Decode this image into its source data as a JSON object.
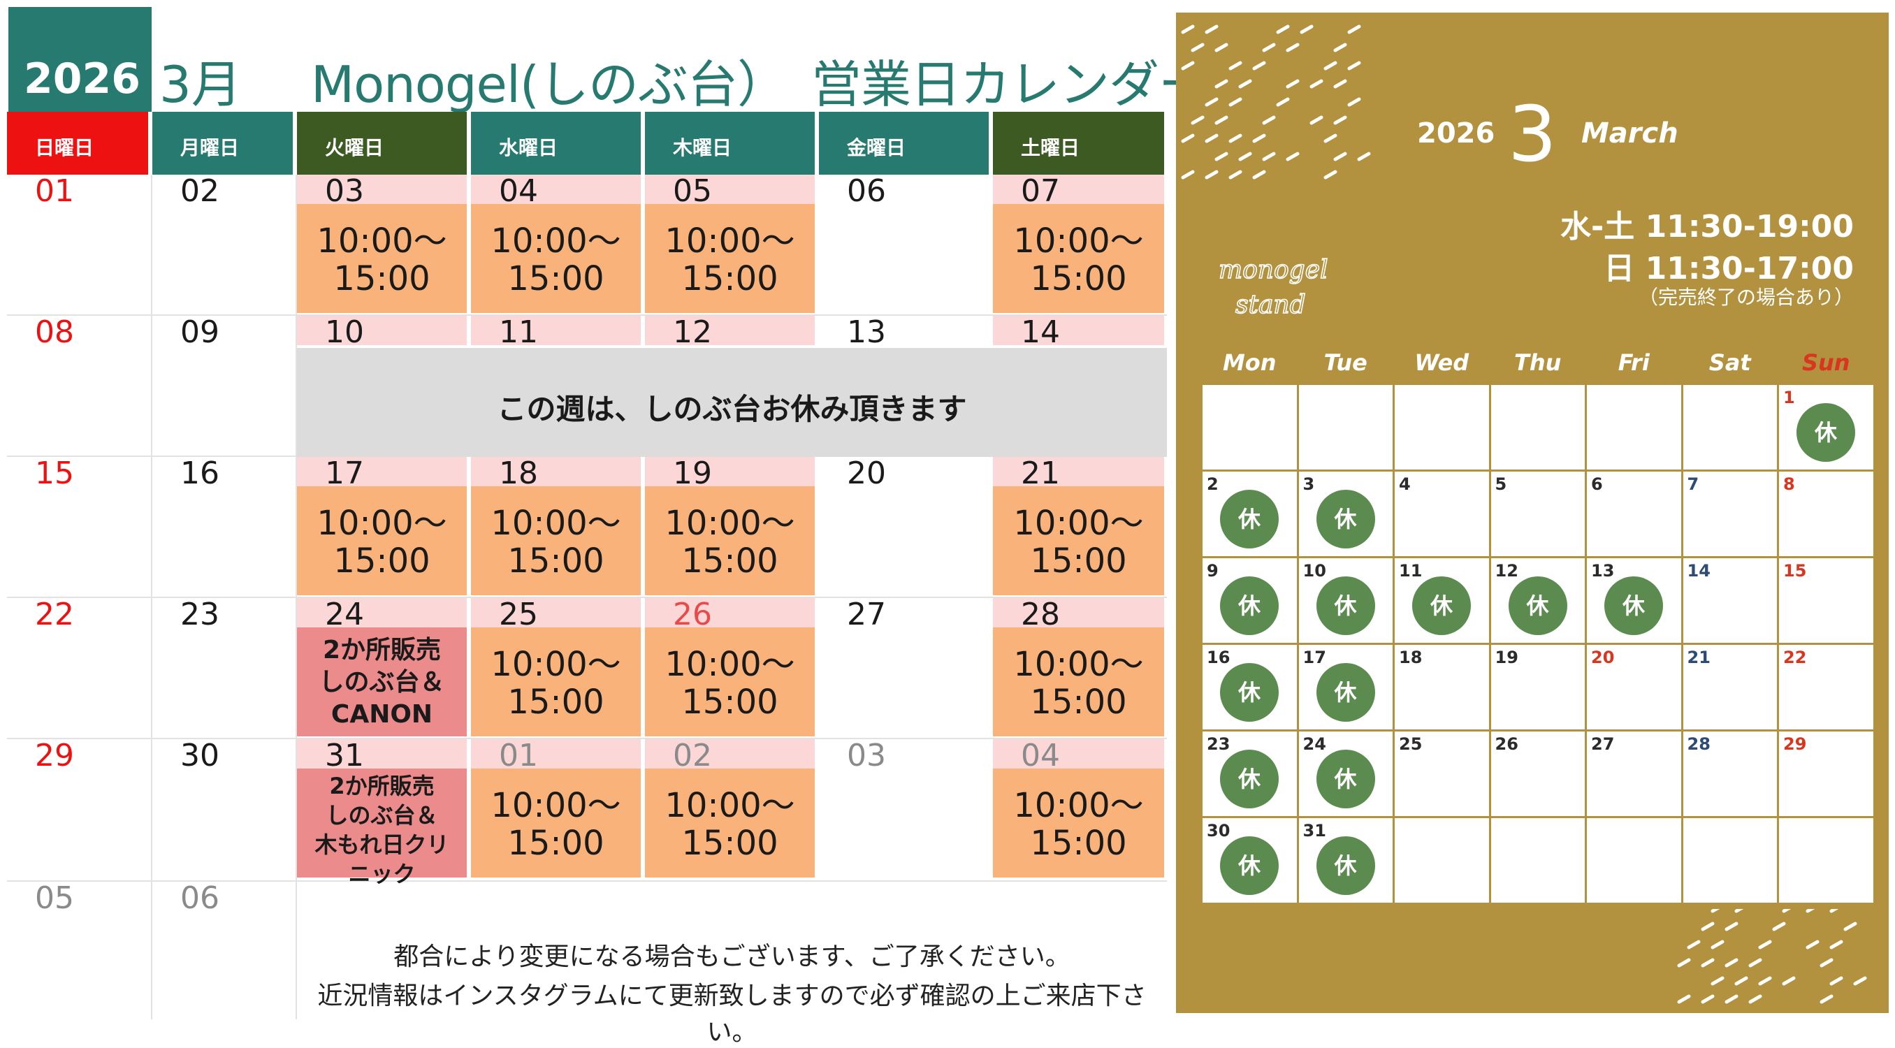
{
  "left": {
    "year": "2026",
    "month": "3月",
    "title": "Monogel(しのぶ台）　営業日カレンダー",
    "weekday_headers": [
      {
        "label": "日曜日",
        "color": "#ee1111"
      },
      {
        "label": "月曜日",
        "color": "#277a70"
      },
      {
        "label": "火曜日",
        "color": "#3d5a23"
      },
      {
        "label": "水曜日",
        "color": "#277a70"
      },
      {
        "label": "木曜日",
        "color": "#277a70"
      },
      {
        "label": "金曜日",
        "color": "#277a70"
      },
      {
        "label": "土曜日",
        "color": "#3d5a23"
      }
    ],
    "weeks": [
      [
        "01",
        "02",
        "03",
        "04",
        "05",
        "06",
        "07"
      ],
      [
        "08",
        "09",
        "10",
        "11",
        "12",
        "13",
        "14"
      ],
      [
        "15",
        "16",
        "17",
        "18",
        "19",
        "20",
        "21"
      ],
      [
        "22",
        "23",
        "24",
        "25",
        "26",
        "27",
        "28"
      ],
      [
        "29",
        "30",
        "31",
        "01",
        "02",
        "03",
        "04"
      ],
      [
        "05",
        "06"
      ]
    ],
    "hours": "10:00〜\n15:00",
    "closed_week_text": "この週は、しのぶ台お休み頂きます",
    "sale_24": "2か所販売\nしのぶ台＆\nCANON",
    "sale_31": "2か所販売\nしのぶ台＆\n木もれ日クリ\nニック",
    "note_line1": "都合により変更になる場合もございます、ご了承ください。",
    "note_line2": "近況情報はインスタグラムにて更新致しますので必ず確認の上ご来店下さい。"
  },
  "right": {
    "year": "2026",
    "month": "3",
    "month_name": "March",
    "hours_line1": "水-土 11:30-19:00",
    "hours_line2": "日 11:30-17:00",
    "hours_note": "（完売終了の場合あり）",
    "logo_text_1": "monogel",
    "logo_text_2": "stand",
    "weekdays": [
      "Mon",
      "Tue",
      "Wed",
      "Thu",
      "Fri",
      "Sat",
      "Sun"
    ],
    "closed_label": "休",
    "days": [
      {
        "d": "1",
        "kyu": true
      },
      {
        "d": "2",
        "kyu": true
      },
      {
        "d": "3",
        "kyu": true
      },
      {
        "d": "4",
        "kyu": false
      },
      {
        "d": "5",
        "kyu": false
      },
      {
        "d": "6",
        "kyu": false
      },
      {
        "d": "7",
        "kyu": false
      },
      {
        "d": "8",
        "kyu": false
      },
      {
        "d": "9",
        "kyu": true
      },
      {
        "d": "10",
        "kyu": true
      },
      {
        "d": "11",
        "kyu": true
      },
      {
        "d": "12",
        "kyu": true
      },
      {
        "d": "13",
        "kyu": true
      },
      {
        "d": "14",
        "kyu": false
      },
      {
        "d": "15",
        "kyu": false
      },
      {
        "d": "16",
        "kyu": true
      },
      {
        "d": "17",
        "kyu": true
      },
      {
        "d": "18",
        "kyu": false
      },
      {
        "d": "19",
        "kyu": false
      },
      {
        "d": "20",
        "kyu": false
      },
      {
        "d": "21",
        "kyu": false
      },
      {
        "d": "22",
        "kyu": false
      },
      {
        "d": "23",
        "kyu": true
      },
      {
        "d": "24",
        "kyu": true
      },
      {
        "d": "25",
        "kyu": false
      },
      {
        "d": "26",
        "kyu": false
      },
      {
        "d": "27",
        "kyu": false
      },
      {
        "d": "28",
        "kyu": false
      },
      {
        "d": "29",
        "kyu": false
      },
      {
        "d": "30",
        "kyu": true
      },
      {
        "d": "31",
        "kyu": true
      }
    ],
    "colors": {
      "background": "#b2913f",
      "closed_circle": "#5c8b50",
      "sunday": "#d8361e",
      "saturday": "#2d4b75"
    }
  }
}
